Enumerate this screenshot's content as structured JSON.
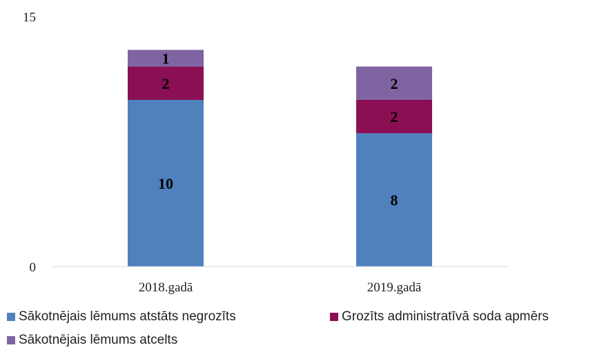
{
  "chart_data": {
    "type": "bar",
    "stacked": true,
    "title": "",
    "xlabel": "",
    "ylabel": "",
    "ylim": [
      0,
      15
    ],
    "y_ticks": [
      "0",
      "15"
    ],
    "categories": [
      "2018.gadā",
      "2019.gadā"
    ],
    "series": [
      {
        "name": "Sākotnējais lēmums atstāts negrozīts",
        "values": [
          10,
          8
        ],
        "color": "#4f81bd"
      },
      {
        "name": "Grozīts administratīvā soda apmērs",
        "values": [
          2,
          2
        ],
        "color": "#8b0f53"
      },
      {
        "name": "Sākotnējais lēmums atcelts",
        "values": [
          1,
          2
        ],
        "color": "#8064a2"
      }
    ],
    "data_labels": true,
    "grid": false,
    "legend_position": "bottom"
  }
}
